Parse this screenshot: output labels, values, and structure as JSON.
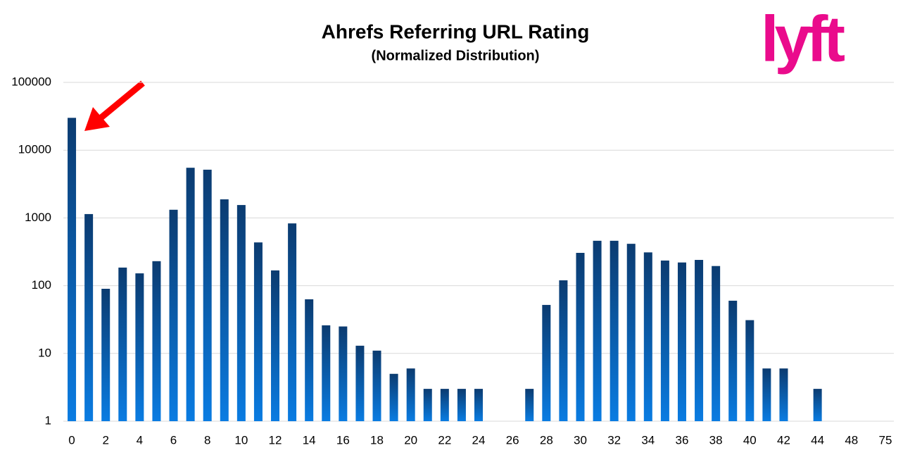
{
  "logo": "lyft",
  "chart_data": {
    "type": "bar",
    "title": "Ahrefs Referring URL Rating",
    "subtitle": "(Normalized Distribution)",
    "categories": [
      "0",
      null,
      "2",
      null,
      "4",
      null,
      "6",
      null,
      "8",
      null,
      "10",
      null,
      "12",
      null,
      "14",
      null,
      "16",
      null,
      "18",
      null,
      "20",
      null,
      "22",
      null,
      "24",
      null,
      "26",
      null,
      "28",
      null,
      "30",
      null,
      "32",
      null,
      "34",
      null,
      "36",
      null,
      "38",
      null,
      "40",
      null,
      "42",
      null,
      "44",
      null,
      "48",
      null,
      "75"
    ],
    "values": [
      30000,
      1140,
      90,
      185,
      152,
      230,
      1320,
      5500,
      5150,
      1880,
      1550,
      435,
      168,
      830,
      63,
      26,
      25,
      13,
      11,
      5,
      6,
      3,
      3,
      3,
      3,
      null,
      null,
      3,
      52,
      120,
      305,
      460,
      460,
      415,
      310,
      235,
      220,
      240,
      195,
      60,
      31,
      6,
      6,
      null,
      3,
      null,
      null,
      null,
      null
    ],
    "gradient": [
      "#0b3b70",
      "#0a7ce2"
    ],
    "log_scale": true,
    "grid": true,
    "ylim": [
      1,
      100000
    ],
    "yticks": [
      1,
      10,
      100,
      1000,
      10000,
      100000
    ]
  }
}
